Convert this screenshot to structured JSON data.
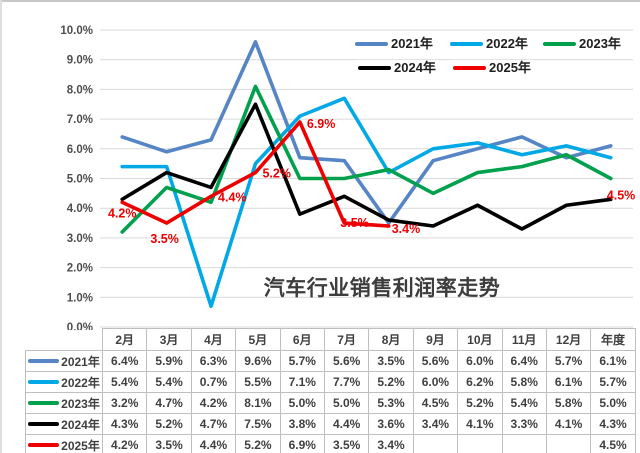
{
  "chart_data": {
    "type": "line",
    "title": "汽车行业销售利润率走势",
    "categories": [
      "2月",
      "3月",
      "4月",
      "5月",
      "6月",
      "7月",
      "8月",
      "9月",
      "10月",
      "11月",
      "12月",
      "年度"
    ],
    "y_axis": {
      "min": 0,
      "max": 10,
      "tick_labels": [
        "0.0%",
        "1.0%",
        "2.0%",
        "3.0%",
        "4.0%",
        "5.0%",
        "6.0%",
        "7.0%",
        "8.0%",
        "9.0%",
        "10.0%"
      ]
    },
    "grid": "horizontal",
    "legend_position": "top-right-two-rows",
    "series": [
      {
        "name": "2021年",
        "color": "#5585C5",
        "values": [
          6.4,
          5.9,
          6.3,
          9.6,
          5.7,
          5.6,
          3.5,
          5.6,
          6.0,
          6.4,
          5.7,
          6.1
        ]
      },
      {
        "name": "2022年",
        "color": "#00A9E6",
        "values": [
          5.4,
          5.4,
          0.7,
          5.5,
          7.1,
          7.7,
          5.2,
          6.0,
          6.2,
          5.8,
          6.1,
          5.7
        ]
      },
      {
        "name": "2023年",
        "color": "#00A04D",
        "values": [
          3.2,
          4.7,
          4.2,
          8.1,
          5.0,
          5.0,
          5.3,
          4.5,
          5.2,
          5.4,
          5.8,
          5.0
        ]
      },
      {
        "name": "2024年",
        "color": "#000000",
        "values": [
          4.3,
          5.2,
          4.7,
          7.5,
          3.8,
          4.4,
          3.6,
          3.4,
          4.1,
          3.3,
          4.1,
          4.3
        ]
      },
      {
        "name": "2025年",
        "color": "#EE0000",
        "values": [
          4.2,
          3.5,
          4.4,
          5.2,
          6.9,
          3.5,
          3.4,
          null,
          null,
          null,
          null,
          4.5
        ]
      }
    ],
    "data_labels": {
      "series": "2025年",
      "color": "#EE0000",
      "texts": [
        "4.2%",
        "3.5%",
        "4.4%",
        "5.2%",
        "6.9%",
        "3.5%",
        "3.4%",
        null,
        null,
        null,
        null,
        "4.5%"
      ]
    }
  },
  "table": {
    "header": [
      "",
      "2月",
      "3月",
      "4月",
      "5月",
      "6月",
      "7月",
      "8月",
      "9月",
      "10月",
      "11月",
      "12月",
      "年度"
    ],
    "rows": [
      {
        "name": "2021年",
        "color": "#5585C5",
        "cells": [
          "6.4%",
          "5.9%",
          "6.3%",
          "9.6%",
          "5.7%",
          "5.6%",
          "3.5%",
          "5.6%",
          "6.0%",
          "6.4%",
          "5.7%",
          "6.1%"
        ]
      },
      {
        "name": "2022年",
        "color": "#00A9E6",
        "cells": [
          "5.4%",
          "5.4%",
          "0.7%",
          "5.5%",
          "7.1%",
          "7.7%",
          "5.2%",
          "6.0%",
          "6.2%",
          "5.8%",
          "6.1%",
          "5.7%"
        ]
      },
      {
        "name": "2023年",
        "color": "#00A04D",
        "cells": [
          "3.2%",
          "4.7%",
          "4.2%",
          "8.1%",
          "5.0%",
          "5.0%",
          "5.3%",
          "4.5%",
          "5.2%",
          "5.4%",
          "5.8%",
          "5.0%"
        ]
      },
      {
        "name": "2024年",
        "color": "#000000",
        "cells": [
          "4.3%",
          "5.2%",
          "4.7%",
          "7.5%",
          "3.8%",
          "4.4%",
          "3.6%",
          "3.4%",
          "4.1%",
          "3.3%",
          "4.1%",
          "4.3%"
        ]
      },
      {
        "name": "2025年",
        "color": "#EE0000",
        "cells": [
          "4.2%",
          "3.5%",
          "4.4%",
          "5.2%",
          "6.9%",
          "3.5%",
          "3.4%",
          "",
          "",
          "",
          "",
          "4.5%"
        ]
      }
    ]
  }
}
